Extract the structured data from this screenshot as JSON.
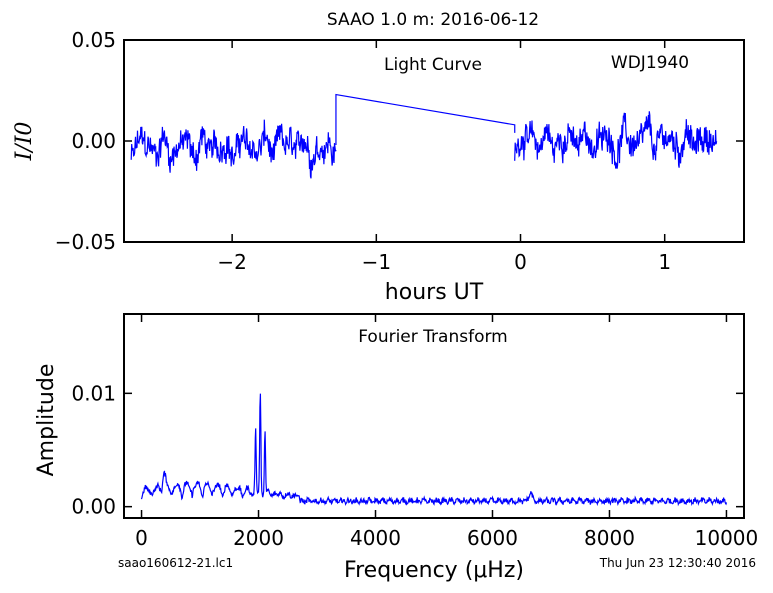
{
  "figure": {
    "title": "SAAO 1.0 m:  2016-06-12",
    "footer_left": "saao160612-21.lc1",
    "footer_right": "Thu Jun 23 12:30:40 2016"
  },
  "chart_data": [
    {
      "type": "line",
      "title": "",
      "annotations": [
        "Light Curve",
        "WDJ1940"
      ],
      "xlabel": "hours UT",
      "ylabel": "I/I0",
      "xlim": [
        -2.75,
        1.55
      ],
      "ylim": [
        -0.05,
        0.05
      ],
      "xticks": [
        -2,
        -1,
        0,
        1
      ],
      "xtick_labels": [
        "−2",
        "−1",
        "0",
        "1"
      ],
      "yticks": [
        -0.05,
        0.0,
        0.05
      ],
      "ytick_labels": [
        "−0.05",
        "0.00",
        "0.05"
      ],
      "grid": false,
      "color": "#0000ff",
      "segments": [
        {
          "x_start": -2.7,
          "x_end": -1.28,
          "mean": -0.003,
          "amplitude": 0.011
        },
        {
          "x_start": -1.28,
          "x_end": -0.04,
          "values_at_ends": [
            0.023,
            0.008
          ]
        },
        {
          "x_start": -0.04,
          "x_end": 1.36,
          "mean": 0.0,
          "amplitude": 0.011
        }
      ]
    },
    {
      "type": "line",
      "title": "",
      "annotations": [
        "Fourier Transform"
      ],
      "xlabel": "Frequency (μHz)",
      "ylabel": "Amplitude",
      "xlim": [
        -300,
        10300
      ],
      "ylim": [
        -0.001,
        0.017
      ],
      "xticks": [
        0,
        2000,
        4000,
        6000,
        8000,
        10000
      ],
      "xtick_labels": [
        "0",
        "2000",
        "4000",
        "6000",
        "8000",
        "10000"
      ],
      "yticks": [
        0.0,
        0.01
      ],
      "ytick_labels": [
        "0.00",
        "0.01"
      ],
      "grid": false,
      "color": "#0000ff",
      "peaks": [
        {
          "x": 2030,
          "y": 0.0089
        },
        {
          "x": 1950,
          "y": 0.0055
        },
        {
          "x": 2110,
          "y": 0.0055
        },
        {
          "x": 380,
          "y": 0.0022
        },
        {
          "x": 6650,
          "y": 0.0012
        }
      ],
      "noise_floor": 0.0006
    }
  ]
}
